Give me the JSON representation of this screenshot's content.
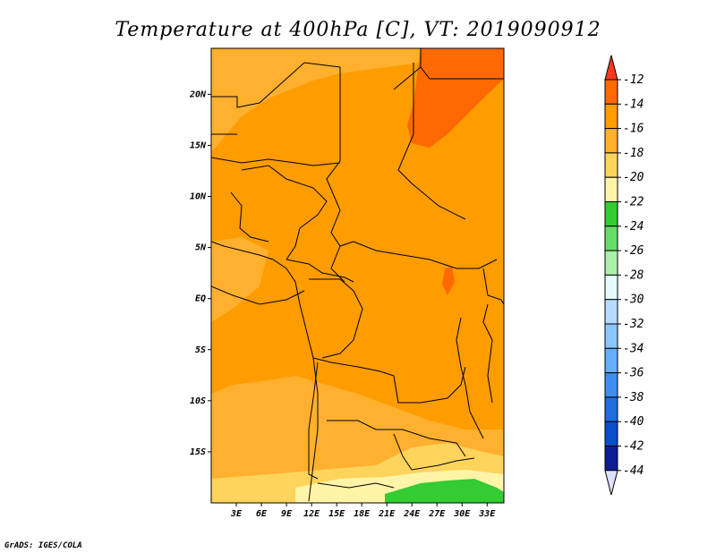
{
  "chart_data": {
    "type": "heatmap",
    "title": "Temperature at 400hPa [C], VT: 2019090912",
    "x_ticks": [
      "3E",
      "6E",
      "9E",
      "12E",
      "15E",
      "18E",
      "21E",
      "24E",
      "27E",
      "30E",
      "33E"
    ],
    "y_ticks": [
      "20N",
      "15N",
      "10N",
      "5N",
      "EQ",
      "5S",
      "10S",
      "15S"
    ],
    "xlim": [
      "0E",
      "35E"
    ],
    "ylim": [
      "20S",
      "24.5N"
    ],
    "colorbar": {
      "levels": [
        "-12",
        "-14",
        "-16",
        "-18",
        "-20",
        "-22",
        "-24",
        "-26",
        "-28",
        "-30",
        "-32",
        "-34",
        "-36",
        "-38",
        "-40",
        "-42",
        "-44"
      ],
      "colors": [
        "#ff3a1e",
        "#ff6a00",
        "#ff9c00",
        "#ffb02e",
        "#ffd45c",
        "#fff4a8",
        "#33cc33",
        "#66dd66",
        "#aaf0aa",
        "#e4fbff",
        "#b4dcff",
        "#8cc6ff",
        "#64aefa",
        "#3e8ef0",
        "#1e6ee0",
        "#0a50c8",
        "#0c1e96",
        "#000066",
        "#e0e0ff"
      ]
    },
    "grid": false,
    "credit": "GrADS: IGES/COLA"
  }
}
